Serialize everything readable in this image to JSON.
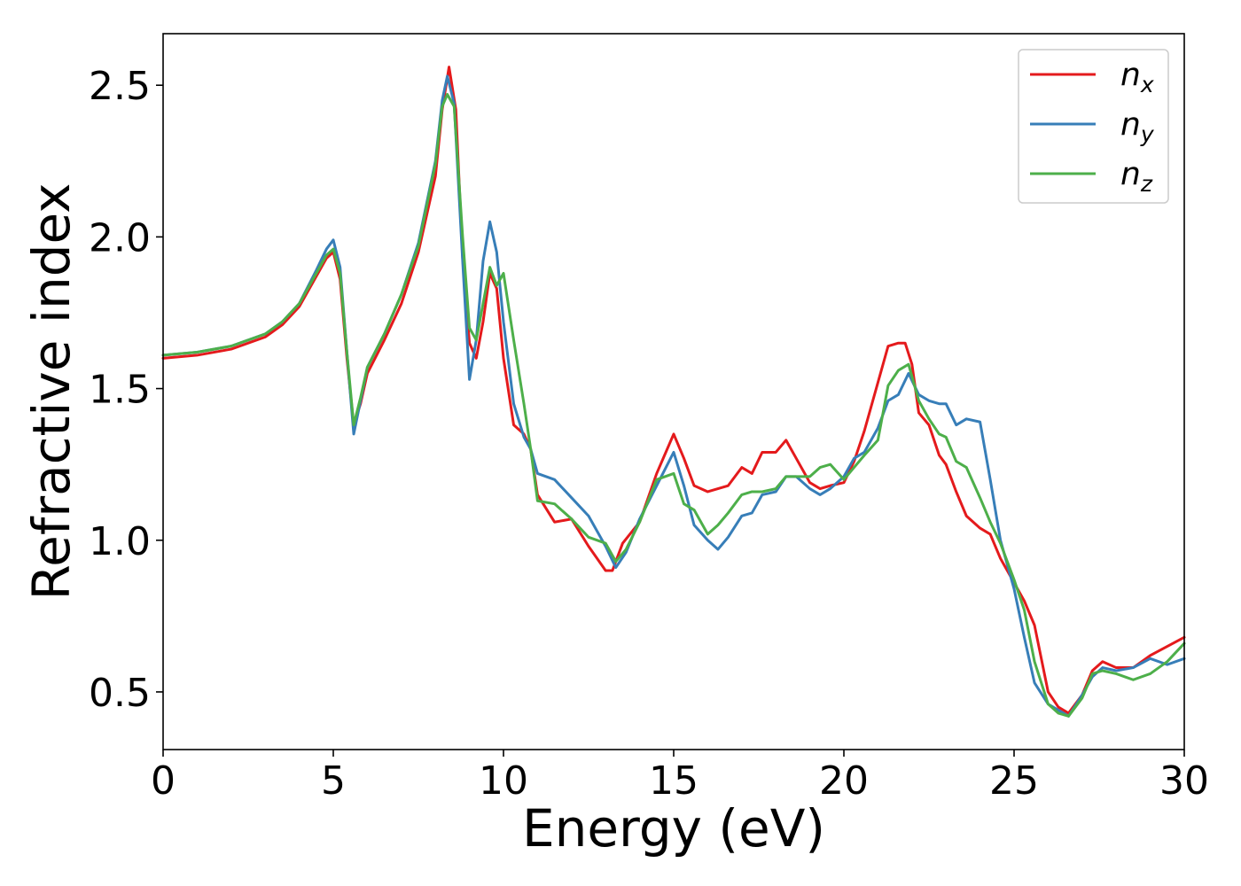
{
  "chart_data": {
    "type": "line",
    "xlabel": "Energy (eV)",
    "ylabel": "Refractive index",
    "xlim": [
      0,
      30
    ],
    "ylim": [
      0.31,
      2.67
    ],
    "xticks": [
      0,
      5,
      10,
      15,
      20,
      25,
      30
    ],
    "xtick_labels": [
      "0",
      "5",
      "10",
      "15",
      "20",
      "25",
      "30"
    ],
    "yticks": [
      0.5,
      1.0,
      1.5,
      2.0,
      2.5
    ],
    "ytick_labels": [
      "0.5",
      "1.0",
      "1.5",
      "2.0",
      "2.5"
    ],
    "grid": false,
    "legend_position": "top-right",
    "series": [
      {
        "name": "n",
        "subscript": "x",
        "color": "#e41a1c",
        "x": [
          0,
          1,
          2,
          3,
          3.5,
          4,
          4.5,
          4.8,
          5.0,
          5.2,
          5.4,
          5.6,
          5.8,
          6.0,
          6.5,
          7.0,
          7.5,
          8.0,
          8.2,
          8.4,
          8.6,
          8.8,
          9.0,
          9.2,
          9.4,
          9.6,
          9.8,
          10.0,
          10.3,
          10.6,
          10.8,
          11.0,
          11.5,
          12.0,
          12.5,
          13.0,
          13.2,
          13.5,
          14.0,
          14.5,
          15.0,
          15.3,
          15.6,
          16.0,
          16.3,
          16.6,
          17.0,
          17.3,
          17.6,
          18.0,
          18.3,
          18.6,
          19.0,
          19.3,
          19.6,
          20.0,
          20.3,
          20.6,
          21.0,
          21.3,
          21.6,
          21.8,
          22.0,
          22.2,
          22.5,
          22.8,
          23.0,
          23.3,
          23.6,
          24.0,
          24.3,
          24.6,
          25.0,
          25.3,
          25.6,
          26.0,
          26.3,
          26.6,
          27.0,
          27.3,
          27.6,
          28.0,
          28.5,
          29.0,
          29.5,
          30.0
        ],
        "y": [
          1.6,
          1.61,
          1.63,
          1.67,
          1.71,
          1.77,
          1.87,
          1.93,
          1.95,
          1.86,
          1.6,
          1.38,
          1.45,
          1.55,
          1.66,
          1.78,
          1.95,
          2.2,
          2.42,
          2.56,
          2.42,
          1.93,
          1.65,
          1.6,
          1.72,
          1.88,
          1.83,
          1.6,
          1.38,
          1.35,
          1.3,
          1.15,
          1.06,
          1.07,
          0.98,
          0.9,
          0.9,
          0.99,
          1.06,
          1.22,
          1.35,
          1.27,
          1.18,
          1.16,
          1.17,
          1.18,
          1.24,
          1.22,
          1.29,
          1.29,
          1.33,
          1.27,
          1.19,
          1.17,
          1.18,
          1.19,
          1.26,
          1.36,
          1.52,
          1.64,
          1.65,
          1.65,
          1.58,
          1.42,
          1.38,
          1.28,
          1.25,
          1.16,
          1.08,
          1.04,
          1.02,
          0.94,
          0.86,
          0.8,
          0.72,
          0.5,
          0.45,
          0.43,
          0.49,
          0.57,
          0.6,
          0.58,
          0.58,
          0.62,
          0.65,
          0.68
        ]
      },
      {
        "name": "n",
        "subscript": "y",
        "color": "#377eb8",
        "x": [
          0,
          1,
          2,
          3,
          3.5,
          4,
          4.5,
          4.8,
          5.0,
          5.2,
          5.4,
          5.6,
          5.8,
          6.0,
          6.5,
          7.0,
          7.5,
          8.0,
          8.2,
          8.35,
          8.55,
          8.8,
          9.0,
          9.2,
          9.4,
          9.6,
          9.8,
          10.0,
          10.3,
          10.6,
          10.8,
          11.0,
          11.5,
          12.0,
          12.5,
          13.0,
          13.3,
          13.6,
          14.0,
          14.5,
          15.0,
          15.3,
          15.6,
          16.0,
          16.3,
          16.6,
          17.0,
          17.3,
          17.6,
          18.0,
          18.3,
          18.6,
          19.0,
          19.3,
          19.6,
          20.0,
          20.3,
          20.6,
          21.0,
          21.3,
          21.6,
          21.9,
          22.2,
          22.5,
          22.8,
          23.0,
          23.3,
          23.6,
          24.0,
          24.3,
          24.6,
          25.0,
          25.3,
          25.6,
          26.0,
          26.3,
          26.6,
          27.0,
          27.3,
          27.6,
          28.0,
          28.5,
          29.0,
          29.5,
          30.0
        ],
        "y": [
          1.61,
          1.62,
          1.64,
          1.68,
          1.72,
          1.78,
          1.89,
          1.96,
          1.99,
          1.9,
          1.62,
          1.35,
          1.46,
          1.57,
          1.68,
          1.81,
          1.98,
          2.25,
          2.45,
          2.53,
          2.44,
          1.92,
          1.53,
          1.66,
          1.92,
          2.05,
          1.95,
          1.72,
          1.45,
          1.34,
          1.3,
          1.22,
          1.2,
          1.14,
          1.08,
          0.98,
          0.91,
          0.96,
          1.07,
          1.18,
          1.29,
          1.18,
          1.05,
          1.0,
          0.97,
          1.01,
          1.08,
          1.09,
          1.15,
          1.16,
          1.21,
          1.21,
          1.17,
          1.15,
          1.17,
          1.21,
          1.27,
          1.29,
          1.37,
          1.46,
          1.48,
          1.55,
          1.48,
          1.46,
          1.45,
          1.45,
          1.38,
          1.4,
          1.39,
          1.2,
          1.0,
          0.84,
          0.68,
          0.53,
          0.46,
          0.44,
          0.42,
          0.49,
          0.55,
          0.58,
          0.57,
          0.58,
          0.61,
          0.59,
          0.61
        ]
      },
      {
        "name": "n",
        "subscript": "z",
        "color": "#4daf4a",
        "x": [
          0,
          1,
          2,
          3,
          3.5,
          4,
          4.5,
          4.8,
          5.0,
          5.2,
          5.4,
          5.6,
          5.8,
          6.0,
          6.5,
          7.0,
          7.5,
          8.0,
          8.2,
          8.35,
          8.55,
          8.8,
          9.0,
          9.2,
          9.4,
          9.6,
          9.8,
          10.0,
          10.3,
          10.6,
          10.8,
          11.0,
          11.5,
          12.0,
          12.5,
          13.0,
          13.3,
          13.6,
          14.0,
          14.5,
          15.0,
          15.3,
          15.6,
          16.0,
          16.3,
          16.6,
          17.0,
          17.3,
          17.6,
          18.0,
          18.3,
          18.6,
          19.0,
          19.3,
          19.6,
          20.0,
          20.3,
          20.6,
          21.0,
          21.3,
          21.6,
          21.9,
          22.2,
          22.5,
          22.8,
          23.0,
          23.3,
          23.6,
          24.0,
          24.3,
          24.6,
          25.0,
          25.3,
          25.6,
          26.0,
          26.3,
          26.6,
          27.0,
          27.3,
          27.6,
          28.0,
          28.5,
          29.0,
          29.5,
          30.0
        ],
        "y": [
          1.61,
          1.62,
          1.64,
          1.68,
          1.72,
          1.78,
          1.88,
          1.94,
          1.96,
          1.88,
          1.62,
          1.38,
          1.47,
          1.57,
          1.68,
          1.81,
          1.97,
          2.24,
          2.43,
          2.47,
          2.43,
          2.0,
          1.7,
          1.66,
          1.78,
          1.9,
          1.84,
          1.88,
          1.66,
          1.45,
          1.3,
          1.13,
          1.12,
          1.07,
          1.01,
          0.99,
          0.93,
          0.97,
          1.06,
          1.2,
          1.22,
          1.12,
          1.1,
          1.02,
          1.05,
          1.09,
          1.15,
          1.16,
          1.16,
          1.17,
          1.21,
          1.21,
          1.21,
          1.24,
          1.25,
          1.2,
          1.24,
          1.28,
          1.33,
          1.51,
          1.56,
          1.58,
          1.46,
          1.4,
          1.35,
          1.34,
          1.26,
          1.24,
          1.14,
          1.06,
          0.99,
          0.87,
          0.77,
          0.6,
          0.46,
          0.43,
          0.42,
          0.48,
          0.56,
          0.57,
          0.56,
          0.54,
          0.56,
          0.6,
          0.66
        ]
      }
    ]
  }
}
